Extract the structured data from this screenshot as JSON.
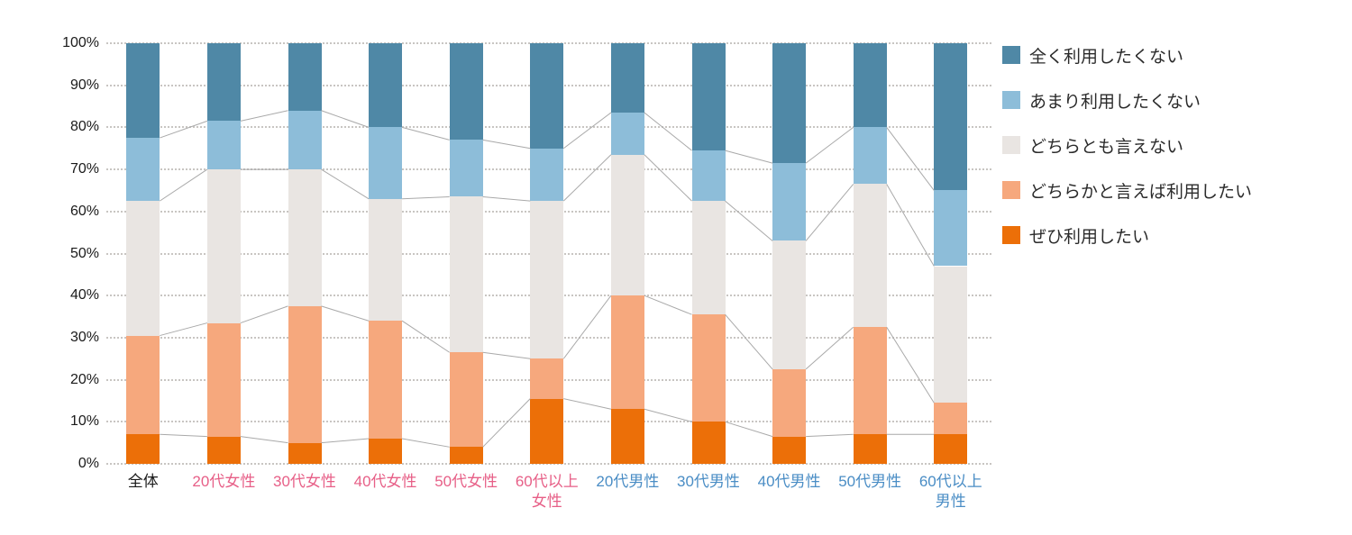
{
  "chart_data": {
    "type": "bar",
    "subtype": "100-percent-stacked-column",
    "title": "",
    "categories": [
      {
        "label": "全体",
        "color": "#1a1a1a"
      },
      {
        "label": "20代女性",
        "color": "#e75f87"
      },
      {
        "label": "30代女性",
        "color": "#e75f87"
      },
      {
        "label": "40代女性",
        "color": "#e75f87"
      },
      {
        "label": "50代女性",
        "color": "#e75f87"
      },
      {
        "label": "60代以上\n女性",
        "color": "#e75f87"
      },
      {
        "label": "20代男性",
        "color": "#4a8dc5"
      },
      {
        "label": "30代男性",
        "color": "#4a8dc5"
      },
      {
        "label": "40代男性",
        "color": "#4a8dc5"
      },
      {
        "label": "50代男性",
        "color": "#4a8dc5"
      },
      {
        "label": "60代以上\n男性",
        "color": "#4a8dc5"
      }
    ],
    "series": [
      {
        "name": "全く利用したくない",
        "color": "#4f88a6",
        "values": [
          22.5,
          18.5,
          16,
          20,
          23,
          25,
          16.5,
          25.5,
          28.5,
          20,
          35
        ]
      },
      {
        "name": "あまり利用したくない",
        "color": "#8dbdd9",
        "values": [
          15,
          11.5,
          14,
          17,
          13.5,
          12.5,
          10,
          12,
          18.5,
          13.5,
          18
        ]
      },
      {
        "name": "どちらとも言えない",
        "color": "#e9e5e2",
        "values": [
          32,
          36.5,
          32.5,
          29,
          37,
          37.5,
          33.5,
          27,
          30.5,
          34,
          32.5
        ]
      },
      {
        "name": "どちらかと言えば利用したい",
        "color": "#f6a87d",
        "values": [
          23.5,
          27,
          32.5,
          28,
          22.5,
          9.5,
          27,
          25.5,
          16,
          25.5,
          7.5
        ]
      },
      {
        "name": "ぜひ利用したい",
        "color": "#ec6f08",
        "values": [
          7,
          6.5,
          5,
          6,
          4,
          15.5,
          13,
          10,
          6.5,
          7,
          7
        ]
      }
    ],
    "stack_order_bottom_to_top": [
      "ぜひ利用したい",
      "どちらかと言えば利用したい",
      "どちらとも言えない",
      "あまり利用したくない",
      "全く利用したくない"
    ],
    "y_ticks": [
      "100%",
      "90%",
      "80%",
      "70%",
      "60%",
      "50%",
      "40%",
      "30%",
      "20%",
      "10%",
      "0%"
    ],
    "ylim": [
      0,
      100
    ],
    "unit": "%",
    "grid": "dotted-horizontal",
    "legend_position": "right",
    "connector_lines": true
  },
  "colors": {
    "grid": "#c8c5c2",
    "connector": "#a9a9a9",
    "background": "#ffffff",
    "axis_text": "#1a1a1a",
    "legend_text": "#2b2b2b"
  }
}
